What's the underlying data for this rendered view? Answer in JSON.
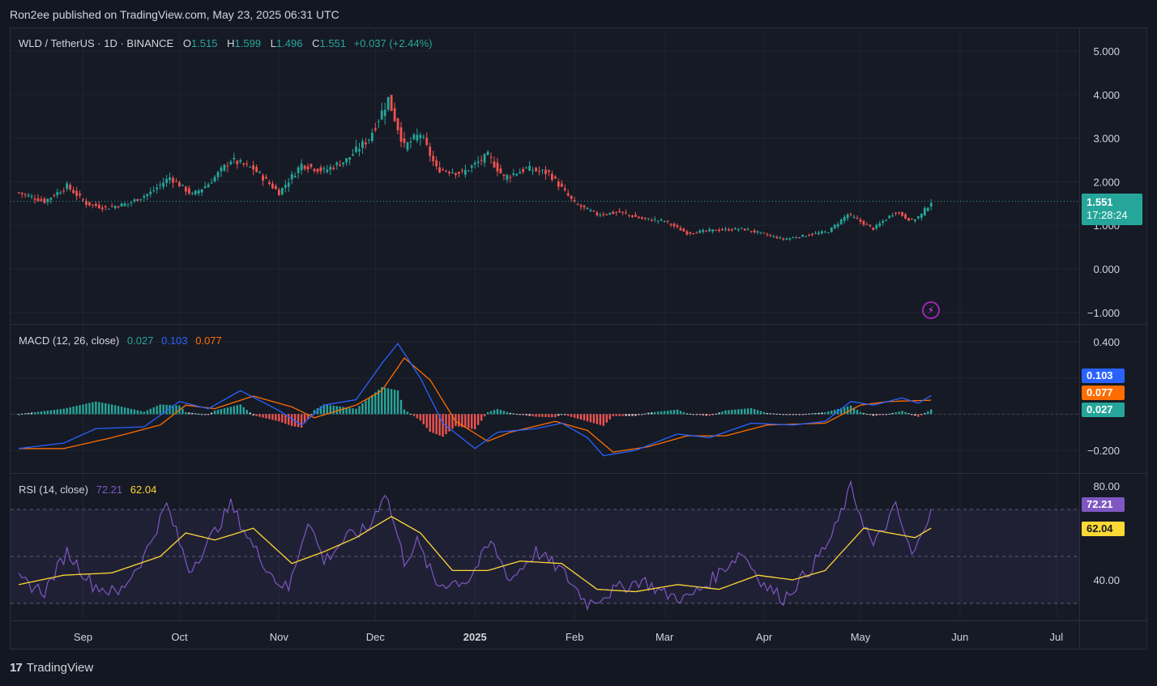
{
  "header": {
    "published": "Ron2ee published on TradingView.com, May 23, 2025 06:31 UTC"
  },
  "legend": {
    "symbol": "WLD / TetherUS · 1D · BINANCE",
    "o_label": "O",
    "o_value": "1.515",
    "h_label": "H",
    "h_value": "1.599",
    "l_label": "L",
    "l_value": "1.496",
    "c_label": "C",
    "c_value": "1.551",
    "change": "+0.037 (+2.44%)"
  },
  "macd_legend": {
    "title": "MACD (12, 26, close)",
    "hist": "0.027",
    "macd": "0.103",
    "signal": "0.077"
  },
  "rsi_legend": {
    "title": "RSI (14, close)",
    "rsi": "72.21",
    "ma": "62.04"
  },
  "price_badge": {
    "price": "1.551",
    "countdown": "17:28:24"
  },
  "macd_badges": {
    "macd": "0.103",
    "signal": "0.077",
    "hist": "0.027"
  },
  "rsi_badges": {
    "rsi": "72.21",
    "ma": "62.04"
  },
  "footer": {
    "brand": "TradingView",
    "logo": "17"
  },
  "colors": {
    "up": "#26a69a",
    "down": "#ef5350",
    "macd": "#2962ff",
    "signal": "#ff6d00",
    "rsi": "#7e57c2",
    "rsi_ma": "#fdd835"
  },
  "chart_data": [
    {
      "type": "candlestick",
      "title": "WLD / TetherUS · 1D · BINANCE",
      "yticks": [
        "5.000",
        "4.000",
        "3.000",
        "2.000",
        "1.000",
        "0.000",
        "−1.000"
      ],
      "ylim": [
        -1.0,
        5.0
      ],
      "x_ticks": [
        "Sep",
        "Oct",
        "Nov",
        "Dec",
        "2025",
        "Feb",
        "Mar",
        "Apr",
        "May",
        "Jun",
        "Jul"
      ],
      "keypoints": [
        {
          "date": "2024-08-12",
          "close": 1.75
        },
        {
          "date": "2024-08-20",
          "close": 1.55
        },
        {
          "date": "2024-08-27",
          "close": 1.9
        },
        {
          "date": "2024-09-02",
          "close": 1.5
        },
        {
          "date": "2024-09-08",
          "close": 1.4
        },
        {
          "date": "2024-09-15",
          "close": 1.5
        },
        {
          "date": "2024-09-22",
          "close": 1.75
        },
        {
          "date": "2024-09-28",
          "close": 2.1
        },
        {
          "date": "2024-10-05",
          "close": 1.7
        },
        {
          "date": "2024-10-10",
          "close": 1.95
        },
        {
          "date": "2024-10-17",
          "close": 2.5
        },
        {
          "date": "2024-10-24",
          "close": 2.3
        },
        {
          "date": "2024-11-01",
          "close": 1.75
        },
        {
          "date": "2024-11-08",
          "close": 2.4
        },
        {
          "date": "2024-11-15",
          "close": 2.25
        },
        {
          "date": "2024-11-22",
          "close": 2.5
        },
        {
          "date": "2024-11-29",
          "close": 3.0
        },
        {
          "date": "2024-12-05",
          "close": 3.9
        },
        {
          "date": "2024-12-10",
          "close": 2.8
        },
        {
          "date": "2024-12-15",
          "close": 3.1
        },
        {
          "date": "2024-12-20",
          "close": 2.3
        },
        {
          "date": "2024-12-28",
          "close": 2.2
        },
        {
          "date": "2025-01-05",
          "close": 2.6
        },
        {
          "date": "2025-01-10",
          "close": 2.1
        },
        {
          "date": "2025-01-17",
          "close": 2.3
        },
        {
          "date": "2025-01-24",
          "close": 2.2
        },
        {
          "date": "2025-02-01",
          "close": 1.5
        },
        {
          "date": "2025-02-08",
          "close": 1.25
        },
        {
          "date": "2025-02-15",
          "close": 1.3
        },
        {
          "date": "2025-02-22",
          "close": 1.15
        },
        {
          "date": "2025-03-01",
          "close": 1.1
        },
        {
          "date": "2025-03-08",
          "close": 0.82
        },
        {
          "date": "2025-03-15",
          "close": 0.88
        },
        {
          "date": "2025-03-25",
          "close": 0.92
        },
        {
          "date": "2025-04-01",
          "close": 0.8
        },
        {
          "date": "2025-04-07",
          "close": 0.68
        },
        {
          "date": "2025-04-14",
          "close": 0.77
        },
        {
          "date": "2025-04-21",
          "close": 0.86
        },
        {
          "date": "2025-04-27",
          "close": 1.25
        },
        {
          "date": "2025-05-05",
          "close": 0.92
        },
        {
          "date": "2025-05-12",
          "close": 1.32
        },
        {
          "date": "2025-05-17",
          "close": 1.1
        },
        {
          "date": "2025-05-20",
          "close": 1.25
        },
        {
          "date": "2025-05-23",
          "close": 1.551
        }
      ],
      "last_price": 1.551
    },
    {
      "type": "line",
      "title": "MACD (12, 26, close)",
      "yticks": [
        "0.400",
        "−0.200"
      ],
      "ylim": [
        -0.3,
        0.45
      ],
      "series": [
        {
          "name": "MACD",
          "points": [
            {
              "date": "2024-08-12",
              "value": -0.19
            },
            {
              "date": "2024-08-26",
              "value": -0.16
            },
            {
              "date": "2024-09-05",
              "value": -0.08
            },
            {
              "date": "2024-09-20",
              "value": -0.07
            },
            {
              "date": "2024-10-01",
              "value": 0.07
            },
            {
              "date": "2024-10-10",
              "value": 0.03
            },
            {
              "date": "2024-10-20",
              "value": 0.13
            },
            {
              "date": "2024-11-01",
              "value": 0.02
            },
            {
              "date": "2024-11-08",
              "value": -0.06
            },
            {
              "date": "2024-11-15",
              "value": 0.05
            },
            {
              "date": "2024-11-25",
              "value": 0.08
            },
            {
              "date": "2024-12-03",
              "value": 0.28
            },
            {
              "date": "2024-12-08",
              "value": 0.39
            },
            {
              "date": "2024-12-15",
              "value": 0.2
            },
            {
              "date": "2024-12-22",
              "value": -0.05
            },
            {
              "date": "2025-01-01",
              "value": -0.19
            },
            {
              "date": "2025-01-08",
              "value": -0.1
            },
            {
              "date": "2025-01-20",
              "value": -0.08
            },
            {
              "date": "2025-01-28",
              "value": -0.05
            },
            {
              "date": "2025-02-05",
              "value": -0.13
            },
            {
              "date": "2025-02-10",
              "value": -0.23
            },
            {
              "date": "2025-02-20",
              "value": -0.2
            },
            {
              "date": "2025-03-05",
              "value": -0.11
            },
            {
              "date": "2025-03-15",
              "value": -0.13
            },
            {
              "date": "2025-03-28",
              "value": -0.05
            },
            {
              "date": "2025-04-10",
              "value": -0.06
            },
            {
              "date": "2025-04-20",
              "value": -0.04
            },
            {
              "date": "2025-04-28",
              "value": 0.07
            },
            {
              "date": "2025-05-05",
              "value": 0.05
            },
            {
              "date": "2025-05-14",
              "value": 0.09
            },
            {
              "date": "2025-05-19",
              "value": 0.06
            },
            {
              "date": "2025-05-23",
              "value": 0.103
            }
          ]
        },
        {
          "name": "Signal",
          "points": [
            {
              "date": "2024-08-12",
              "value": -0.19
            },
            {
              "date": "2024-08-26",
              "value": -0.19
            },
            {
              "date": "2024-09-10",
              "value": -0.13
            },
            {
              "date": "2024-09-25",
              "value": -0.06
            },
            {
              "date": "2024-10-03",
              "value": 0.05
            },
            {
              "date": "2024-10-12",
              "value": 0.03
            },
            {
              "date": "2024-10-24",
              "value": 0.1
            },
            {
              "date": "2024-11-05",
              "value": 0.04
            },
            {
              "date": "2024-11-12",
              "value": -0.02
            },
            {
              "date": "2024-11-25",
              "value": 0.05
            },
            {
              "date": "2024-12-03",
              "value": 0.13
            },
            {
              "date": "2024-12-10",
              "value": 0.31
            },
            {
              "date": "2024-12-18",
              "value": 0.19
            },
            {
              "date": "2024-12-26",
              "value": -0.04
            },
            {
              "date": "2025-01-05",
              "value": -0.15
            },
            {
              "date": "2025-01-12",
              "value": -0.1
            },
            {
              "date": "2025-01-26",
              "value": -0.04
            },
            {
              "date": "2025-02-05",
              "value": -0.09
            },
            {
              "date": "2025-02-13",
              "value": -0.21
            },
            {
              "date": "2025-02-24",
              "value": -0.18
            },
            {
              "date": "2025-03-08",
              "value": -0.12
            },
            {
              "date": "2025-03-20",
              "value": -0.12
            },
            {
              "date": "2025-04-02",
              "value": -0.06
            },
            {
              "date": "2025-04-20",
              "value": -0.05
            },
            {
              "date": "2025-05-01",
              "value": 0.05
            },
            {
              "date": "2025-05-10",
              "value": 0.07
            },
            {
              "date": "2025-05-23",
              "value": 0.077
            }
          ]
        }
      ],
      "histogram_last": 0.027
    },
    {
      "type": "line",
      "title": "RSI (14, close)",
      "yticks": [
        "80.00",
        "40.00"
      ],
      "ylim": [
        26,
        82
      ],
      "bands": [
        70,
        50,
        30
      ],
      "series": [
        {
          "name": "RSI",
          "points": [
            {
              "date": "2024-08-12",
              "value": 40
            },
            {
              "date": "2024-08-20",
              "value": 35
            },
            {
              "date": "2024-08-27",
              "value": 52
            },
            {
              "date": "2024-09-04",
              "value": 38
            },
            {
              "date": "2024-09-12",
              "value": 34
            },
            {
              "date": "2024-09-20",
              "value": 50
            },
            {
              "date": "2024-09-27",
              "value": 72
            },
            {
              "date": "2024-10-04",
              "value": 44
            },
            {
              "date": "2024-10-10",
              "value": 56
            },
            {
              "date": "2024-10-17",
              "value": 72
            },
            {
              "date": "2024-10-24",
              "value": 54
            },
            {
              "date": "2024-10-31",
              "value": 40
            },
            {
              "date": "2024-11-04",
              "value": 36
            },
            {
              "date": "2024-11-10",
              "value": 66
            },
            {
              "date": "2024-11-15",
              "value": 48
            },
            {
              "date": "2024-11-22",
              "value": 58
            },
            {
              "date": "2024-11-29",
              "value": 62
            },
            {
              "date": "2024-12-04",
              "value": 78
            },
            {
              "date": "2024-12-10",
              "value": 48
            },
            {
              "date": "2024-12-14",
              "value": 56
            },
            {
              "date": "2024-12-20",
              "value": 38
            },
            {
              "date": "2024-12-30",
              "value": 40
            },
            {
              "date": "2025-01-06",
              "value": 56
            },
            {
              "date": "2025-01-12",
              "value": 40
            },
            {
              "date": "2025-01-20",
              "value": 52
            },
            {
              "date": "2025-01-28",
              "value": 44
            },
            {
              "date": "2025-02-05",
              "value": 30
            },
            {
              "date": "2025-02-14",
              "value": 36
            },
            {
              "date": "2025-02-22",
              "value": 40
            },
            {
              "date": "2025-03-01",
              "value": 34
            },
            {
              "date": "2025-03-08",
              "value": 32
            },
            {
              "date": "2025-03-14",
              "value": 38
            },
            {
              "date": "2025-03-25",
              "value": 52
            },
            {
              "date": "2025-04-01",
              "value": 38
            },
            {
              "date": "2025-04-07",
              "value": 32
            },
            {
              "date": "2025-04-15",
              "value": 44
            },
            {
              "date": "2025-04-22",
              "value": 58
            },
            {
              "date": "2025-04-28",
              "value": 79
            },
            {
              "date": "2025-05-05",
              "value": 54
            },
            {
              "date": "2025-05-12",
              "value": 71
            },
            {
              "date": "2025-05-17",
              "value": 50
            },
            {
              "date": "2025-05-20",
              "value": 58
            },
            {
              "date": "2025-05-23",
              "value": 72.21
            }
          ]
        },
        {
          "name": "RSI-based MA",
          "points": [
            {
              "date": "2024-08-12",
              "value": 38
            },
            {
              "date": "2024-08-26",
              "value": 42
            },
            {
              "date": "2024-09-10",
              "value": 43
            },
            {
              "date": "2024-09-25",
              "value": 50
            },
            {
              "date": "2024-10-03",
              "value": 60
            },
            {
              "date": "2024-10-12",
              "value": 57
            },
            {
              "date": "2024-10-24",
              "value": 62
            },
            {
              "date": "2024-11-05",
              "value": 47
            },
            {
              "date": "2024-11-15",
              "value": 52
            },
            {
              "date": "2024-11-25",
              "value": 58
            },
            {
              "date": "2024-12-06",
              "value": 67
            },
            {
              "date": "2024-12-15",
              "value": 60
            },
            {
              "date": "2024-12-25",
              "value": 44
            },
            {
              "date": "2025-01-05",
              "value": 44
            },
            {
              "date": "2025-01-15",
              "value": 48
            },
            {
              "date": "2025-01-28",
              "value": 47
            },
            {
              "date": "2025-02-08",
              "value": 36
            },
            {
              "date": "2025-02-20",
              "value": 35
            },
            {
              "date": "2025-03-05",
              "value": 38
            },
            {
              "date": "2025-03-18",
              "value": 36
            },
            {
              "date": "2025-03-30",
              "value": 42
            },
            {
              "date": "2025-04-10",
              "value": 40
            },
            {
              "date": "2025-04-20",
              "value": 44
            },
            {
              "date": "2025-05-02",
              "value": 62
            },
            {
              "date": "2025-05-10",
              "value": 60
            },
            {
              "date": "2025-05-18",
              "value": 58
            },
            {
              "date": "2025-05-23",
              "value": 62.04
            }
          ]
        }
      ]
    }
  ]
}
